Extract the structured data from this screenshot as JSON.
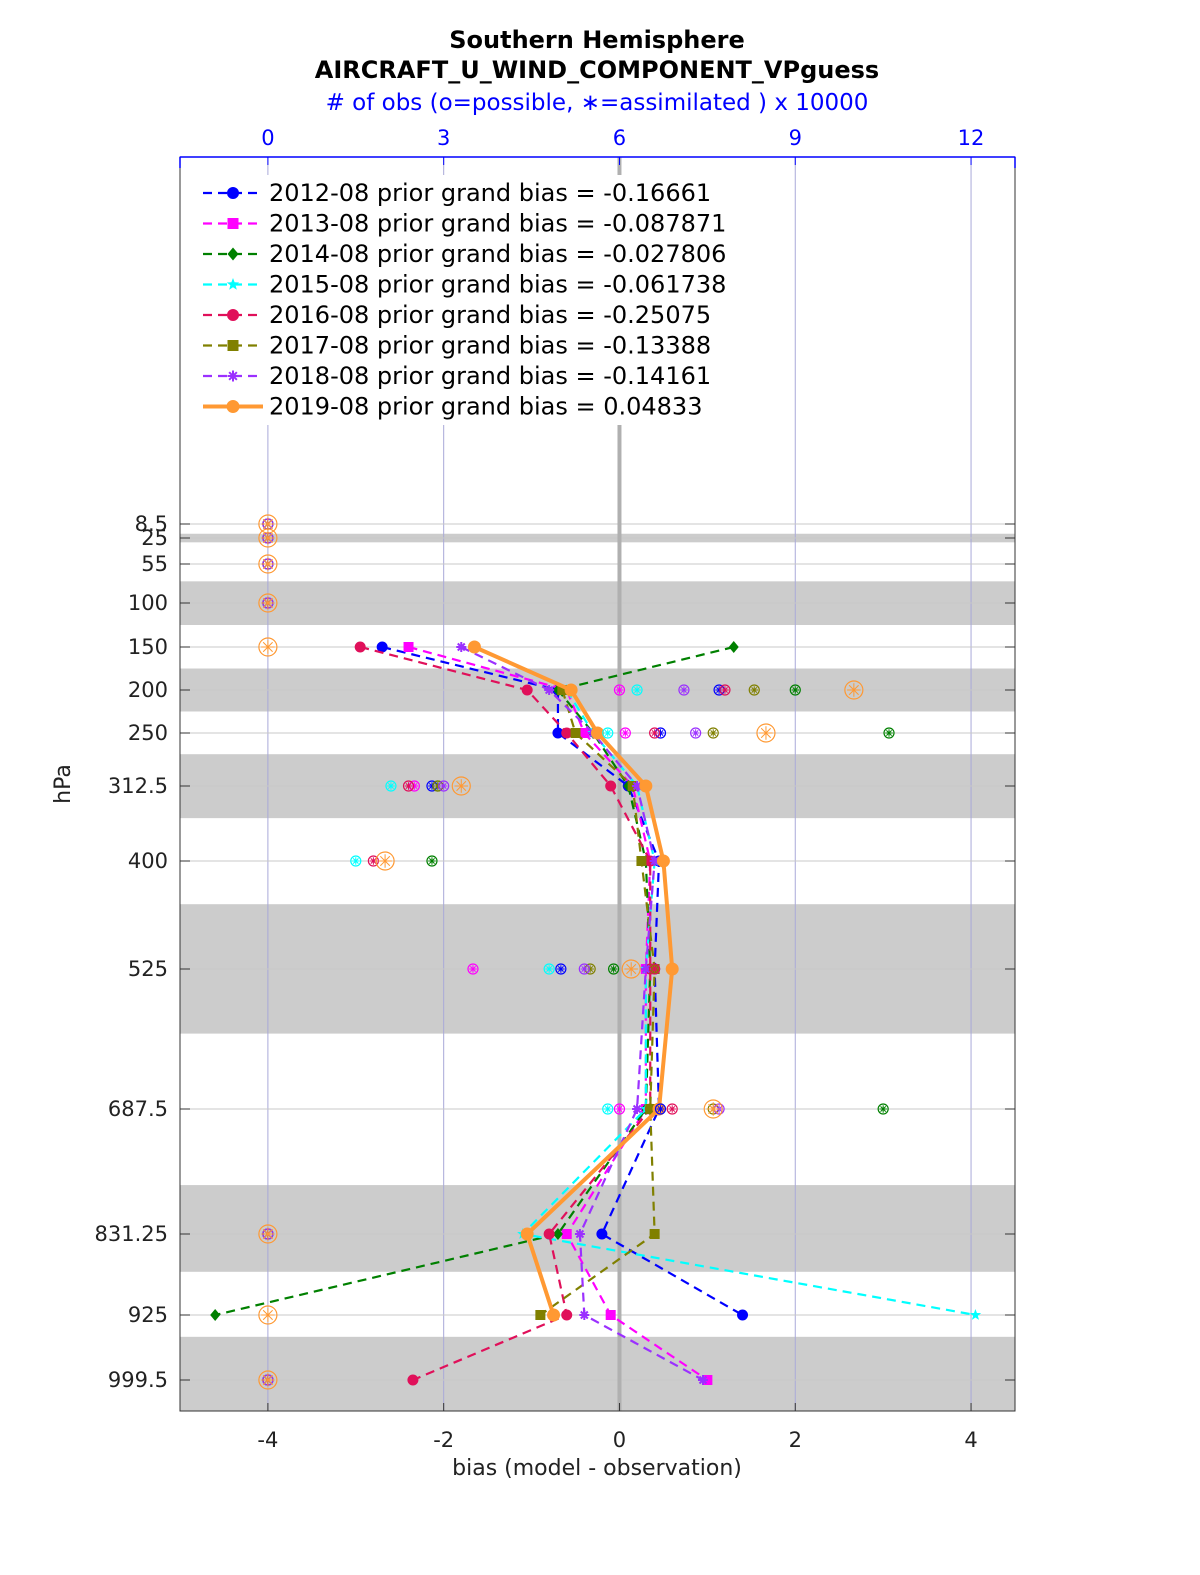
{
  "chart_data": {
    "type": "line",
    "title": "Southern Hemisphere",
    "subtitle": "AIRCRAFT_U_WIND_COMPONENT_VPguess",
    "top_axis_label": "# of obs (o=possible, ∗=assimilated ) x 10000",
    "xlabel": "bias (model - observation)",
    "ylabel": "hPa",
    "xlim": [
      -5,
      4.5
    ],
    "x_ticks": [
      "-4",
      "-2",
      "0",
      "2",
      "4"
    ],
    "top_axis_ticks": [
      "0",
      "3",
      "6",
      "9",
      "12"
    ],
    "top_axis_values": [
      0,
      3,
      6,
      9,
      12
    ],
    "levels": [
      8.5,
      25,
      55,
      100,
      150,
      200,
      250,
      312.5,
      400,
      525,
      687.5,
      831.25,
      925,
      999.5
    ],
    "level_labels": [
      "8.5",
      "25",
      "55",
      "100",
      "150",
      "200",
      "250",
      "312.5",
      "400",
      "525",
      "687.5",
      "831.25",
      "925",
      "999.5"
    ],
    "shaded_bands_hPa": [
      [
        20,
        30
      ],
      [
        75,
        125
      ],
      [
        175,
        225
      ],
      [
        275,
        350
      ],
      [
        450,
        600
      ],
      [
        775,
        875
      ],
      [
        950,
        1050
      ]
    ],
    "grid": true,
    "legend_position": "top-left",
    "series": [
      {
        "name": "2012-08 prior grand bias = -0.16661",
        "color": "#0000ff",
        "marker": "circle",
        "style": "dashed",
        "bias": [
          null,
          null,
          null,
          null,
          -2.7,
          -0.7,
          -0.7,
          0.1,
          0.45,
          0.4,
          0.45,
          -0.2,
          1.4,
          null
        ],
        "obs_count": [
          0,
          0,
          0,
          0,
          null,
          7.7,
          6.7,
          2.8,
          null,
          5.0,
          6.7,
          0,
          null,
          0
        ]
      },
      {
        "name": "2013-08 prior grand bias = -0.087871",
        "color": "#ff00ff",
        "marker": "square",
        "style": "dashed",
        "bias": [
          null,
          null,
          null,
          null,
          -2.4,
          -0.6,
          -0.4,
          0.15,
          0.35,
          0.3,
          0.3,
          -0.6,
          -0.1,
          1.0
        ],
        "obs_count": [
          0,
          0,
          0,
          0,
          null,
          6.0,
          6.1,
          2.5,
          null,
          3.5,
          6.0,
          0,
          null,
          0
        ]
      },
      {
        "name": "2014-08 prior grand bias = -0.027806",
        "color": "#008000",
        "marker": "diamond",
        "style": "dashed",
        "bias": [
          null,
          null,
          null,
          null,
          1.3,
          -0.7,
          -0.3,
          0.1,
          0.3,
          0.35,
          0.3,
          -0.7,
          -4.6,
          null
        ],
        "obs_count": [
          0,
          0,
          0,
          0,
          null,
          9.0,
          10.6,
          2.9,
          2.8,
          5.9,
          10.5,
          0,
          null,
          0
        ]
      },
      {
        "name": "2015-08 prior grand bias = -0.061738",
        "color": "#00ffff",
        "marker": "star",
        "style": "dashed",
        "bias": [
          null,
          null,
          null,
          null,
          null,
          -0.6,
          -0.3,
          0.2,
          0.4,
          0.3,
          0.3,
          -1.1,
          4.05,
          null
        ],
        "obs_count": [
          0,
          0,
          0,
          0,
          null,
          6.3,
          5.8,
          2.1,
          1.5,
          4.8,
          5.8,
          0,
          null,
          0
        ]
      },
      {
        "name": "2016-08 prior grand bias = -0.25075",
        "color": "#e0105a",
        "marker": "hexagon",
        "style": "dashed",
        "bias": [
          null,
          null,
          null,
          null,
          -2.95,
          -1.05,
          -0.6,
          -0.1,
          0.35,
          0.35,
          0.35,
          -0.8,
          -0.6,
          -2.35
        ],
        "obs_count": [
          0,
          0,
          0,
          0,
          null,
          7.8,
          6.6,
          2.4,
          1.8,
          6.6,
          6.9,
          0,
          null,
          0
        ]
      },
      {
        "name": "2017-08 prior grand bias = -0.13388",
        "color": "#808000",
        "marker": "square",
        "style": "dashed",
        "bias": [
          null,
          null,
          null,
          null,
          null,
          -0.65,
          -0.5,
          0.15,
          0.25,
          0.4,
          0.35,
          0.4,
          -0.9,
          null
        ],
        "obs_count": [
          0,
          0,
          0,
          0,
          null,
          8.3,
          7.6,
          2.9,
          null,
          5.5,
          7.6,
          0,
          null,
          0
        ]
      },
      {
        "name": "2018-08 prior grand bias = -0.14161",
        "color": "#9b30ff",
        "marker": "asterisk",
        "style": "dashed",
        "bias": [
          null,
          null,
          null,
          null,
          -1.8,
          -0.8,
          -0.3,
          0.2,
          0.4,
          0.3,
          0.2,
          -0.45,
          -0.4,
          0.95
        ],
        "obs_count": [
          0,
          0,
          0,
          0,
          null,
          7.1,
          7.3,
          3.0,
          null,
          5.4,
          7.7,
          0,
          null,
          0
        ]
      },
      {
        "name": "2019-08 prior grand bias = 0.04833",
        "color": "#ff9933",
        "marker": "circle",
        "style": "solid",
        "bias": [
          null,
          null,
          null,
          null,
          -1.65,
          -0.55,
          -0.25,
          0.3,
          0.5,
          0.6,
          0.45,
          -1.05,
          -0.75,
          null
        ],
        "obs_count": [
          0,
          0,
          0,
          0,
          0,
          10.0,
          8.5,
          3.3,
          2.0,
          6.2,
          7.6,
          0,
          0,
          0
        ]
      }
    ]
  }
}
